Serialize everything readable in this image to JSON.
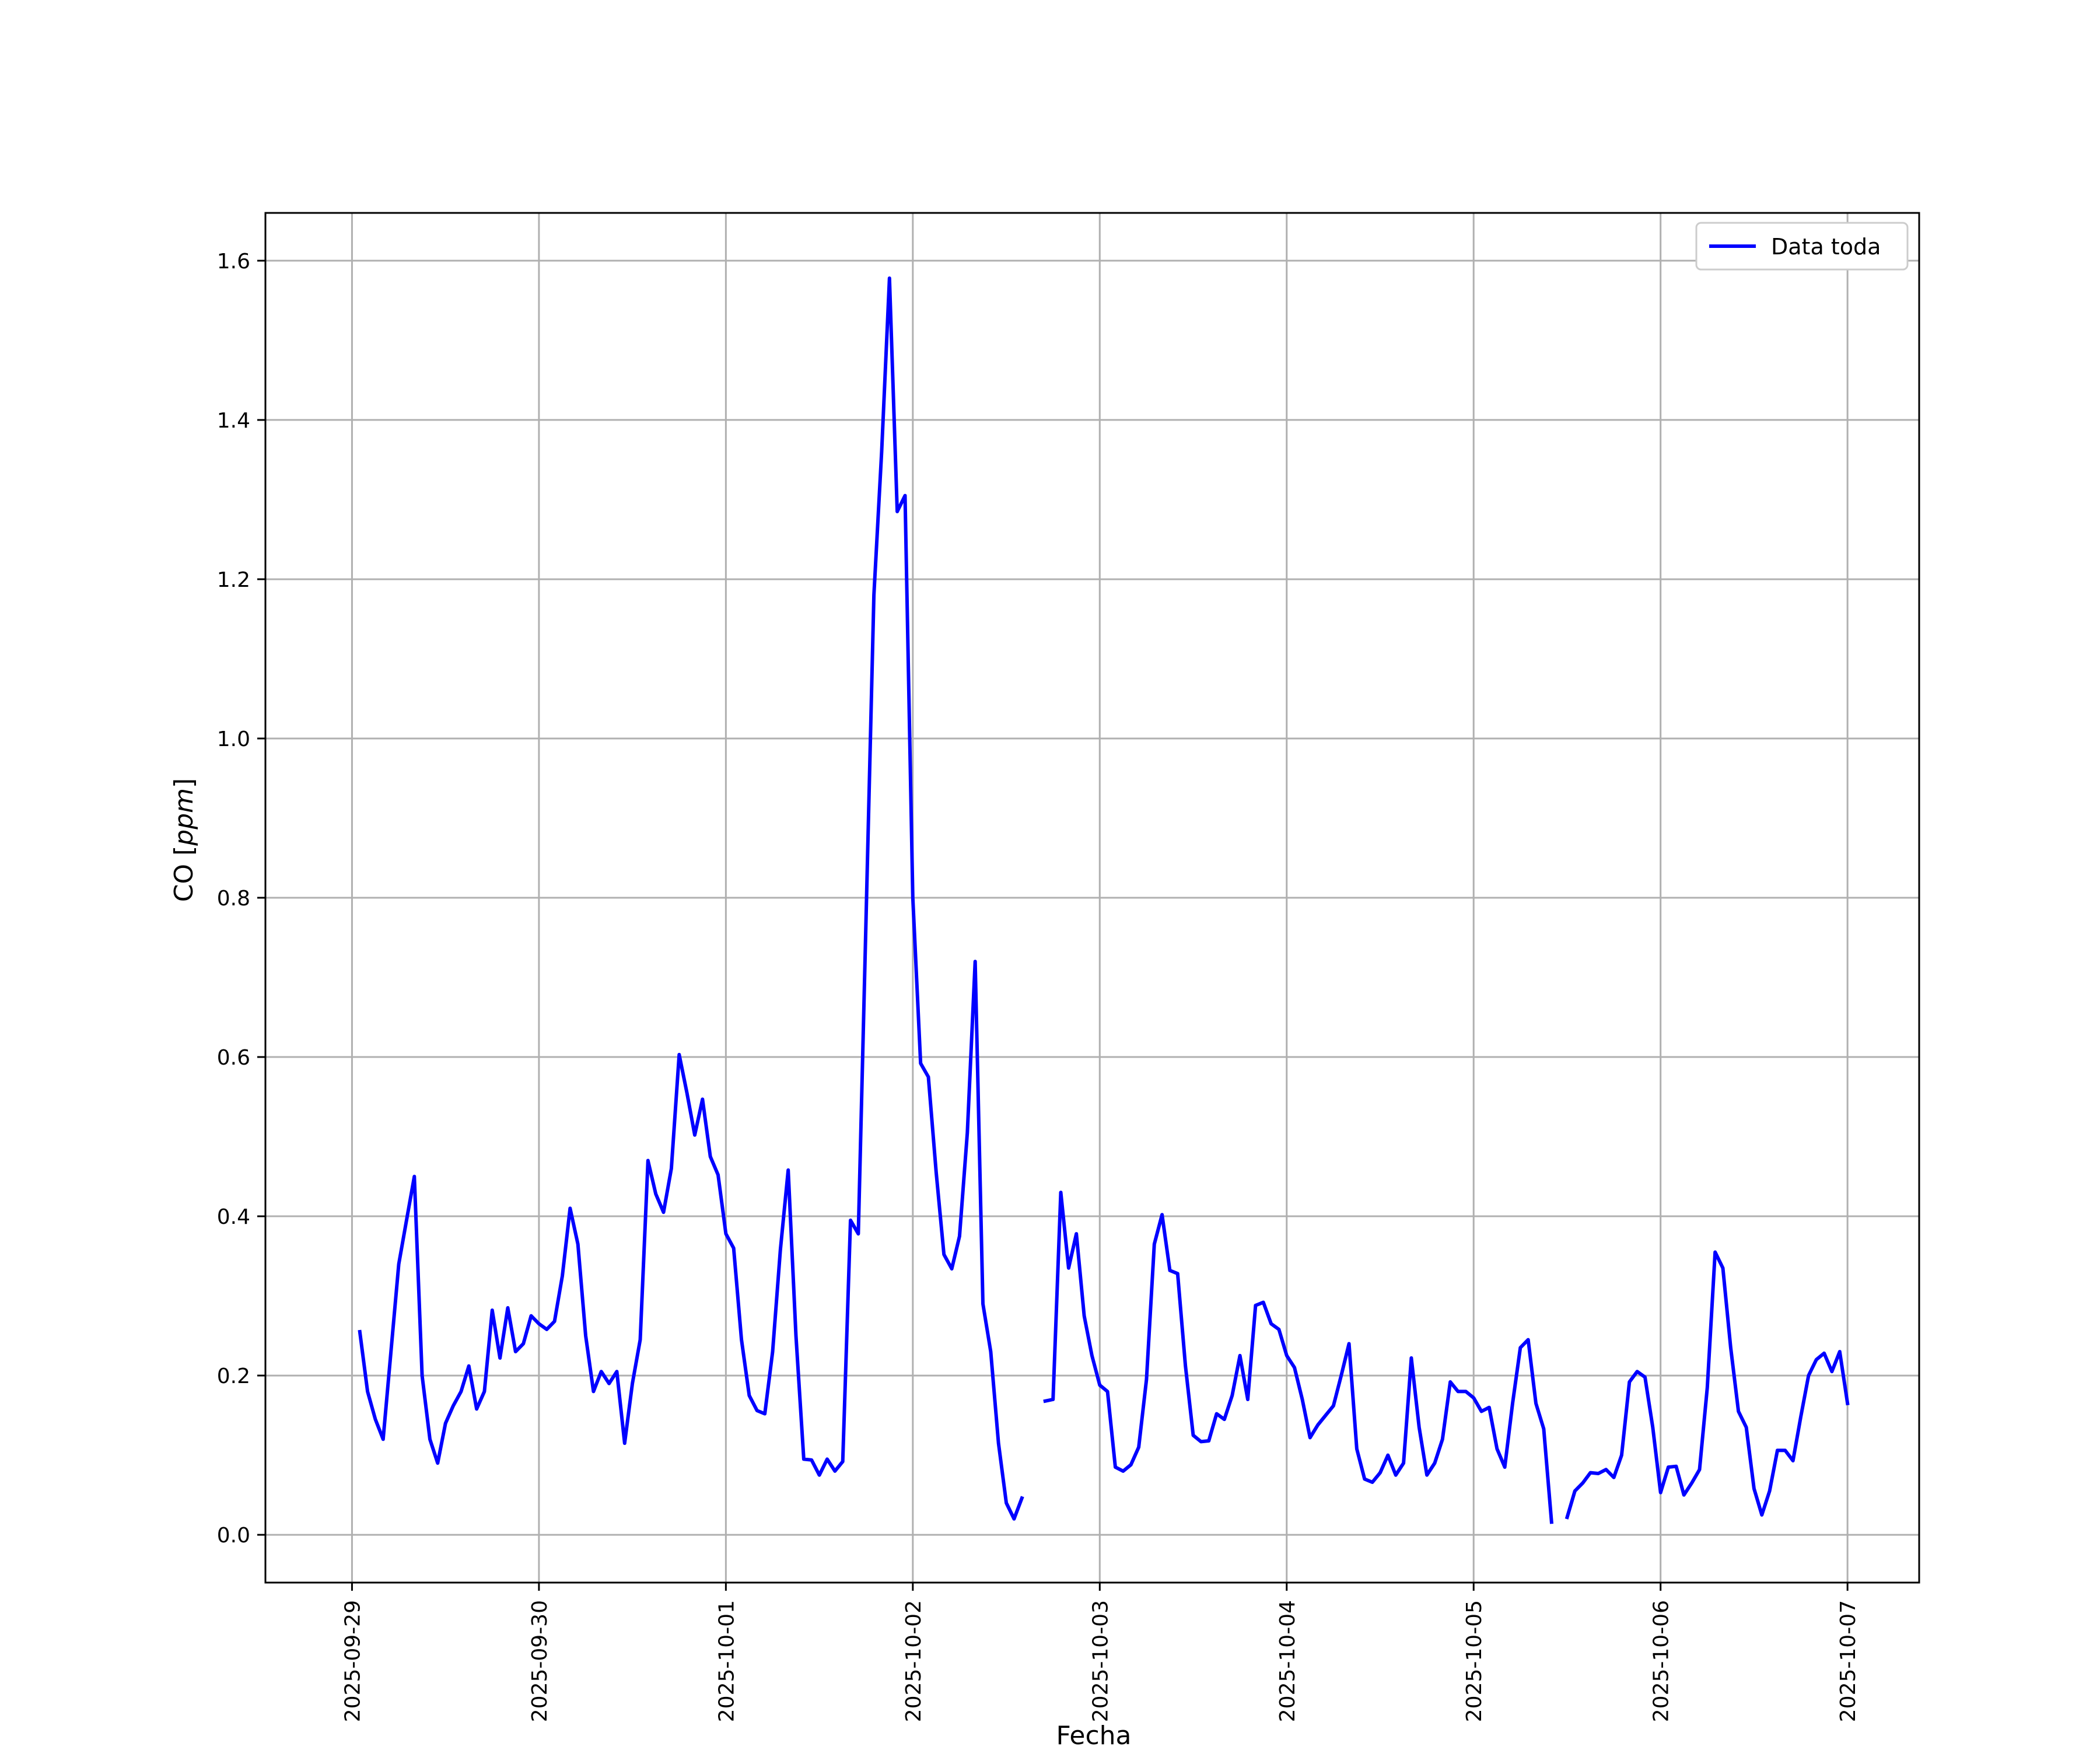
{
  "chart_data": {
    "type": "line",
    "title": "",
    "xlabel": "Fecha",
    "ylabel_plain": "CO [",
    "ylabel_italic": "ppm",
    "ylabel_close": "]",
    "x_tick_labels": [
      "2025-09-29",
      "2025-09-30",
      "2025-10-01",
      "2025-10-02",
      "2025-10-03",
      "2025-10-04",
      "2025-10-05",
      "2025-10-06",
      "2025-10-07"
    ],
    "y_tick_labels": [
      "0.0",
      "0.2",
      "0.4",
      "0.6",
      "0.8",
      "1.0",
      "1.2",
      "1.4",
      "1.6"
    ],
    "y_ticks": [
      0,
      0.2,
      0.4,
      0.6,
      0.8,
      1.0,
      1.2,
      1.4,
      1.6
    ],
    "xlim": [
      "2025-09-28T12:53",
      "2025-10-07T09:12"
    ],
    "ylim": [
      -0.06,
      1.66
    ],
    "grid": true,
    "legend_position": "upper right",
    "series": [
      {
        "name": "Data toda",
        "color": "#0000ff",
        "segments": [
          {
            "x": [
              "2025-09-29T01:00",
              "2025-09-29T02:00",
              "2025-09-29T03:00",
              "2025-09-29T04:00",
              "2025-09-29T05:00",
              "2025-09-29T06:00",
              "2025-09-29T07:00",
              "2025-09-29T08:00",
              "2025-09-29T09:00",
              "2025-09-29T10:00",
              "2025-09-29T11:00",
              "2025-09-29T12:00",
              "2025-09-29T13:00",
              "2025-09-29T14:00",
              "2025-09-29T15:00",
              "2025-09-29T16:00",
              "2025-09-29T17:00",
              "2025-09-29T18:00",
              "2025-09-29T19:00",
              "2025-09-29T20:00",
              "2025-09-29T21:00",
              "2025-09-29T22:00",
              "2025-09-29T23:00",
              "2025-09-30T00:00",
              "2025-09-30T01:00",
              "2025-09-30T02:00",
              "2025-09-30T03:00",
              "2025-09-30T04:00",
              "2025-09-30T05:00",
              "2025-09-30T06:00",
              "2025-09-30T07:00",
              "2025-09-30T08:00",
              "2025-09-30T09:00",
              "2025-09-30T10:00",
              "2025-09-30T11:00",
              "2025-09-30T12:00",
              "2025-09-30T13:00",
              "2025-09-30T14:00",
              "2025-09-30T15:00",
              "2025-09-30T16:00",
              "2025-09-30T17:00",
              "2025-09-30T18:00",
              "2025-09-30T19:00",
              "2025-09-30T20:00",
              "2025-09-30T21:00",
              "2025-09-30T22:00",
              "2025-09-30T23:00",
              "2025-10-01T00:00",
              "2025-10-01T01:00",
              "2025-10-01T02:00",
              "2025-10-01T03:00",
              "2025-10-01T04:00",
              "2025-10-01T05:00",
              "2025-10-01T06:00",
              "2025-10-01T07:00",
              "2025-10-01T08:00",
              "2025-10-01T09:00",
              "2025-10-01T10:00",
              "2025-10-01T11:00",
              "2025-10-01T12:00",
              "2025-10-01T13:00",
              "2025-10-01T14:00",
              "2025-10-01T15:00",
              "2025-10-01T16:00",
              "2025-10-01T17:00",
              "2025-10-01T18:00",
              "2025-10-01T19:00",
              "2025-10-01T20:00",
              "2025-10-01T21:00",
              "2025-10-01T22:00",
              "2025-10-01T23:00",
              "2025-10-02T00:00",
              "2025-10-02T01:00",
              "2025-10-02T02:00",
              "2025-10-02T03:00",
              "2025-10-02T04:00",
              "2025-10-02T05:00",
              "2025-10-02T06:00",
              "2025-10-02T07:00",
              "2025-10-02T08:00",
              "2025-10-02T09:00",
              "2025-10-02T10:00",
              "2025-10-02T11:00",
              "2025-10-02T12:00",
              "2025-10-02T13:00",
              "2025-10-02T14:00"
            ],
            "y": [
              0.255,
              0.18,
              0.145,
              0.12,
              0.23,
              0.34,
              0.395,
              0.45,
              0.2,
              0.12,
              0.09,
              0.14,
              0.162,
              0.18,
              0.212,
              0.158,
              0.18,
              0.282,
              0.222,
              0.285,
              0.23,
              0.24,
              0.275,
              0.265,
              0.258,
              0.268,
              0.325,
              0.41,
              0.365,
              0.25,
              0.18,
              0.205,
              0.19,
              0.205,
              0.115,
              0.19,
              0.245,
              0.47,
              0.428,
              0.405,
              0.46,
              0.603,
              0.555,
              0.502,
              0.547,
              0.475,
              0.452,
              0.378,
              0.36,
              0.245,
              0.175,
              0.156,
              0.152,
              0.23,
              0.358,
              0.458,
              0.25,
              0.095,
              0.094,
              0.075,
              0.095,
              0.08,
              0.092,
              0.395,
              0.378,
              0.775,
              1.18,
              1.36,
              1.578,
              1.285,
              1.305,
              0.8,
              0.592,
              0.575,
              0.455,
              0.352,
              0.334,
              0.375,
              0.505,
              0.72,
              0.29,
              0.23,
              0.115,
              0.04,
              0.02,
              0.046
            ]
          },
          {
            "x": [
              "2025-10-02T17:00",
              "2025-10-02T18:00",
              "2025-10-02T19:00",
              "2025-10-02T20:00",
              "2025-10-02T21:00",
              "2025-10-02T22:00",
              "2025-10-02T23:00",
              "2025-10-03T00:00",
              "2025-10-03T01:00",
              "2025-10-03T02:00",
              "2025-10-03T03:00",
              "2025-10-03T04:00",
              "2025-10-03T05:00",
              "2025-10-03T06:00",
              "2025-10-03T07:00",
              "2025-10-03T08:00",
              "2025-10-03T09:00",
              "2025-10-03T10:00",
              "2025-10-03T11:00",
              "2025-10-03T12:00",
              "2025-10-03T13:00",
              "2025-10-03T14:00",
              "2025-10-03T15:00",
              "2025-10-03T16:00",
              "2025-10-03T17:00",
              "2025-10-03T18:00",
              "2025-10-03T19:00",
              "2025-10-03T20:00",
              "2025-10-03T21:00",
              "2025-10-03T22:00",
              "2025-10-03T23:00",
              "2025-10-04T00:00",
              "2025-10-04T01:00",
              "2025-10-04T02:00",
              "2025-10-04T03:00",
              "2025-10-04T04:00",
              "2025-10-04T05:00",
              "2025-10-04T06:00",
              "2025-10-04T07:00",
              "2025-10-04T08:00",
              "2025-10-04T09:00",
              "2025-10-04T10:00",
              "2025-10-04T11:00",
              "2025-10-04T12:00",
              "2025-10-04T13:00",
              "2025-10-04T14:00",
              "2025-10-04T15:00",
              "2025-10-04T16:00",
              "2025-10-04T17:00",
              "2025-10-04T18:00",
              "2025-10-04T19:00",
              "2025-10-04T20:00",
              "2025-10-04T21:00",
              "2025-10-04T22:00",
              "2025-10-04T23:00",
              "2025-10-05T00:00",
              "2025-10-05T01:00",
              "2025-10-05T02:00",
              "2025-10-05T03:00",
              "2025-10-05T04:00",
              "2025-10-05T05:00",
              "2025-10-05T06:00",
              "2025-10-05T07:00",
              "2025-10-05T08:00",
              "2025-10-05T09:00",
              "2025-10-05T10:00"
            ],
            "y": [
              0.168,
              0.17,
              0.43,
              0.335,
              0.378,
              0.275,
              0.225,
              0.188,
              0.18,
              0.085,
              0.08,
              0.088,
              0.11,
              0.195,
              0.365,
              0.402,
              0.332,
              0.328,
              0.212,
              0.125,
              0.117,
              0.118,
              0.152,
              0.145,
              0.175,
              0.225,
              0.17,
              0.288,
              0.292,
              0.265,
              0.258,
              0.225,
              0.21,
              0.17,
              0.122,
              0.138,
              0.15,
              0.162,
              0.2,
              0.24,
              0.108,
              0.07,
              0.066,
              0.078,
              0.1,
              0.075,
              0.09,
              0.222,
              0.135,
              0.075,
              0.09,
              0.12,
              0.192,
              0.18,
              0.18,
              0.172,
              0.155,
              0.16,
              0.108,
              0.085,
              0.165,
              0.235,
              0.245,
              0.165,
              0.133,
              0.016
            ]
          },
          {
            "x": [
              "2025-10-05T12:00",
              "2025-10-05T13:00",
              "2025-10-05T14:00",
              "2025-10-05T15:00",
              "2025-10-05T16:00",
              "2025-10-05T17:00",
              "2025-10-05T18:00",
              "2025-10-05T19:00",
              "2025-10-05T20:00",
              "2025-10-05T21:00",
              "2025-10-05T22:00",
              "2025-10-05T23:00",
              "2025-10-06T00:00",
              "2025-10-06T01:00",
              "2025-10-06T02:00",
              "2025-10-06T03:00",
              "2025-10-06T04:00",
              "2025-10-06T05:00",
              "2025-10-06T06:00",
              "2025-10-06T07:00",
              "2025-10-06T08:00",
              "2025-10-06T09:00",
              "2025-10-06T10:00",
              "2025-10-06T11:00",
              "2025-10-06T12:00",
              "2025-10-06T13:00",
              "2025-10-06T14:00",
              "2025-10-06T15:00",
              "2025-10-06T16:00",
              "2025-10-06T17:00",
              "2025-10-06T18:00",
              "2025-10-06T19:00",
              "2025-10-06T20:00",
              "2025-10-06T21:00",
              "2025-10-06T22:00",
              "2025-10-06T23:00",
              "2025-10-07T00:00"
            ],
            "y": [
              0.022,
              0.055,
              0.065,
              0.078,
              0.077,
              0.082,
              0.072,
              0.1,
              0.192,
              0.205,
              0.198,
              0.135,
              0.053,
              0.085,
              0.086,
              0.05,
              0.065,
              0.082,
              0.185,
              0.355,
              0.335,
              0.235,
              0.155,
              0.135,
              0.058,
              0.025,
              0.055,
              0.106,
              0.106,
              0.093,
              0.148,
              0.2,
              0.22,
              0.228,
              0.205,
              0.23,
              0.165
            ]
          }
        ]
      }
    ]
  }
}
